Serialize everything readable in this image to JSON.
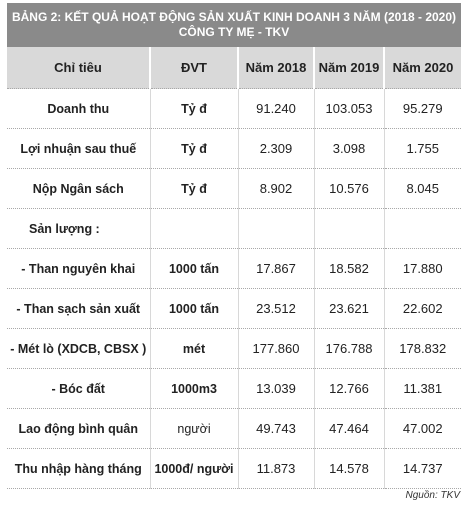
{
  "title": {
    "line1": "BẢNG 2: KẾT QUẢ HOẠT ĐỘNG SẢN XUẤT KINH DOANH 3 NĂM (2018 - 2020)",
    "line2": "CÔNG TY MẸ - TKV"
  },
  "table": {
    "headers": [
      "Chỉ tiêu",
      "ĐVT",
      "Năm 2018",
      "Năm 2019",
      "Năm 2020"
    ],
    "rows": [
      {
        "label": "Doanh thu",
        "unit": "Tỷ đ",
        "v2018": "91.240",
        "v2019": "103.053",
        "v2020": "95.279"
      },
      {
        "label": "Lợi nhuận sau thuế",
        "unit": "Tỷ đ",
        "v2018": "2.309",
        "v2019": "3.098",
        "v2020": "1.755"
      },
      {
        "label": "Nộp Ngân sách",
        "unit": "Tỷ đ",
        "v2018": "8.902",
        "v2019": "10.576",
        "v2020": "8.045"
      },
      {
        "label": "Sản lượng :",
        "unit": "",
        "v2018": "",
        "v2019": "",
        "v2020": ""
      },
      {
        "label": "- Than nguyên khai",
        "unit": "1000 tấn",
        "v2018": "17.867",
        "v2019": "18.582",
        "v2020": "17.880"
      },
      {
        "label": "- Than sạch sản xuất",
        "unit": "1000 tấn",
        "v2018": "23.512",
        "v2019": "23.621",
        "v2020": "22.602"
      },
      {
        "label": "- Mét lò (XDCB, CBSX )",
        "unit": "mét",
        "v2018": "177.860",
        "v2019": "176.788",
        "v2020": "178.832"
      },
      {
        "label": "- Bóc đất",
        "unit": "1000m3",
        "v2018": "13.039",
        "v2019": "12.766",
        "v2020": "11.381"
      },
      {
        "label": "Lao động bình quân",
        "unit": "người",
        "v2018": "49.743",
        "v2019": "47.464",
        "v2020": "47.002"
      },
      {
        "label": "Thu nhập hàng tháng",
        "unit": "1000đ/ người",
        "v2018": "11.873",
        "v2019": "14.578",
        "v2020": "14.737"
      }
    ]
  },
  "source": "Nguồn: TKV"
}
